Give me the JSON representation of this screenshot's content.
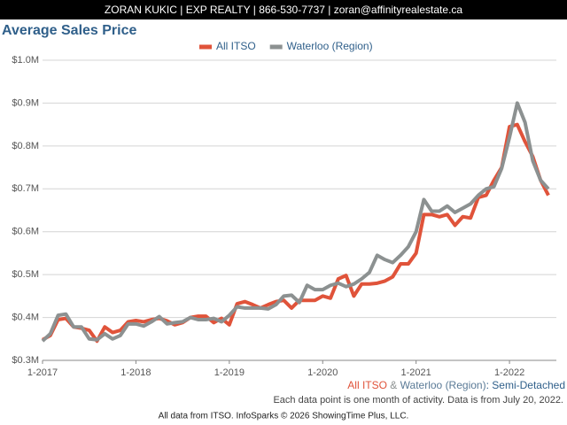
{
  "header": {
    "text": "ZORAN KUKIC | EXP REALTY | 866-530-7737 | zoran@affinityrealestate.ca"
  },
  "chart_data": {
    "type": "line",
    "title": "Average Sales Price",
    "legend": "top",
    "grid": true,
    "categories": [
      "1-2017",
      null,
      null,
      null,
      null,
      null,
      null,
      null,
      null,
      null,
      null,
      null,
      "1-2018",
      null,
      null,
      null,
      null,
      null,
      null,
      null,
      null,
      null,
      null,
      null,
      "1-2019",
      null,
      null,
      null,
      null,
      null,
      null,
      null,
      null,
      null,
      null,
      null,
      "1-2020",
      null,
      null,
      null,
      null,
      null,
      null,
      null,
      null,
      null,
      null,
      null,
      "1-2021",
      null,
      null,
      null,
      null,
      null,
      null,
      null,
      null,
      null,
      null,
      null,
      "1-2022",
      null,
      null,
      null,
      null,
      null
    ],
    "series": [
      {
        "name": "All ITSO",
        "color": "#e0533a",
        "values": [
          348000,
          358000,
          395000,
          398000,
          378000,
          375000,
          370000,
          345000,
          378000,
          365000,
          370000,
          390000,
          393000,
          390000,
          395000,
          398000,
          392000,
          383000,
          388000,
          400000,
          403000,
          403000,
          388000,
          398000,
          383000,
          432000,
          437000,
          430000,
          422000,
          430000,
          437000,
          440000,
          422000,
          440000,
          440000,
          440000,
          450000,
          445000,
          490000,
          498000,
          450000,
          478000,
          478000,
          480000,
          485000,
          495000,
          525000,
          525000,
          550000,
          640000,
          640000,
          635000,
          640000,
          615000,
          635000,
          632000,
          680000,
          685000,
          720000,
          750000,
          845000,
          850000,
          810000,
          775000,
          720000,
          685000
        ]
      },
      {
        "name": "Waterloo (Region)",
        "color": "#8c9191",
        "values": [
          345000,
          362000,
          405000,
          408000,
          378000,
          378000,
          350000,
          348000,
          362000,
          350000,
          358000,
          385000,
          385000,
          380000,
          390000,
          402000,
          385000,
          388000,
          390000,
          400000,
          395000,
          395000,
          398000,
          390000,
          405000,
          425000,
          422000,
          422000,
          422000,
          420000,
          430000,
          450000,
          452000,
          435000,
          475000,
          465000,
          465000,
          475000,
          480000,
          472000,
          478000,
          490000,
          505000,
          545000,
          535000,
          528000,
          545000,
          565000,
          600000,
          675000,
          648000,
          648000,
          660000,
          645000,
          655000,
          665000,
          685000,
          700000,
          705000,
          748000,
          820000,
          900000,
          855000,
          765000,
          720000,
          700000
        ]
      }
    ],
    "ylim": [
      300000,
      1000000
    ],
    "yticks": [
      {
        "value": 300000,
        "label": "$0.3M"
      },
      {
        "value": 400000,
        "label": "$0.4M"
      },
      {
        "value": 500000,
        "label": "$0.5M"
      },
      {
        "value": 600000,
        "label": "$0.6M"
      },
      {
        "value": 700000,
        "label": "$0.7M"
      },
      {
        "value": 800000,
        "label": "$0.8M"
      },
      {
        "value": 900000,
        "label": "$0.9M"
      },
      {
        "value": 1000000,
        "label": "$1.0M"
      }
    ],
    "caption": {
      "area_a": "All ITSO",
      "joiner": "&",
      "area_b": "Waterloo (Region)",
      "separator": ":",
      "property_type": "Semi-Detached"
    },
    "note": "Each data point is one month of activity. Data is from July 20, 2022."
  },
  "footer": {
    "text": "All data from ITSO. InfoSparks © 2026 ShowingTime Plus, LLC."
  }
}
